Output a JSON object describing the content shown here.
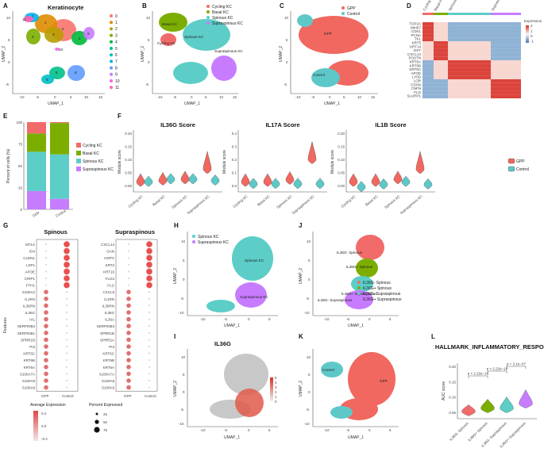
{
  "panels": [
    "A",
    "B",
    "C",
    "D",
    "E",
    "F",
    "G",
    "H",
    "I",
    "J",
    "K",
    "L"
  ],
  "colors": {
    "cycling": "#f16b6b",
    "basal": "#7cae00",
    "spinous": "#5ccdc7",
    "supraspinous": "#c77cff",
    "gpp": "#f06860",
    "control": "#5ec8c8",
    "gray": "#c8c8c8"
  },
  "a": {
    "title": "Keratinocyte",
    "xlabel": "UMAP_1",
    "ylabel": "UMAP_2",
    "xticks": [
      "-10",
      "-5",
      "0",
      "5",
      "10",
      "15"
    ],
    "yticks": [
      "10",
      "5",
      "0",
      "-5"
    ],
    "cluster_labels": [
      "0",
      "1",
      "2",
      "3",
      "4",
      "5",
      "6",
      "7",
      "8",
      "9",
      "10",
      "11"
    ],
    "cluster_colors": [
      "#f8766d",
      "#de8c00",
      "#b79f00",
      "#7cae00",
      "#00ba38",
      "#00c08b",
      "#00bfc4",
      "#00b4f0",
      "#619cff",
      "#c77cff",
      "#f564e3",
      "#ff64b0"
    ],
    "legend": [
      "0",
      "1",
      "2",
      "3",
      "4",
      "5",
      "6",
      "7",
      "8",
      "9",
      "10",
      "11"
    ]
  },
  "b": {
    "xlabel": "UMAP_1",
    "ylabel": "UMAP_2",
    "xticks": [
      "-10",
      "-5",
      "0",
      "5",
      "10",
      "15"
    ],
    "yticks": [
      "10",
      "5",
      "0",
      "-5"
    ],
    "legend": [
      "Cycling KC",
      "Basal KC",
      "Spinous KC",
      "Supraspinous KC"
    ],
    "labels": [
      "Basal KC",
      "Cycling KC",
      "Spinous KC",
      "Supraspinous KC"
    ]
  },
  "c": {
    "xlabel": "UMAP_1",
    "ylabel": "UMAP_2",
    "xticks": [
      "-10",
      "-5",
      "0",
      "5",
      "10",
      "15"
    ],
    "yticks": [
      "10",
      "5",
      "0",
      "-5"
    ],
    "legend": [
      "GPP",
      "Control"
    ],
    "labels": [
      "GPP",
      "Control"
    ]
  },
  "d": {
    "col_groups": [
      "Cycling KC",
      "Basal KC",
      "Spinous KC",
      "Suprasinous KC"
    ],
    "genes": [
      "TOP2A",
      "MKI67",
      "CDK1",
      "PCNA",
      "TK1",
      "KRT5",
      "KRT14",
      "DST",
      "CXCL14",
      "POSTN",
      "KRT6A",
      "KRT6B",
      "KRT6C",
      "APOE",
      "LY6D",
      "LOR",
      "CDSN",
      "CNFN",
      "FLG",
      "SLURP1"
    ],
    "legend_title": "Expression",
    "legend_ticks": [
      "2",
      "1",
      "0",
      "-1"
    ]
  },
  "e": {
    "ylabel": "Percent of cells (%)",
    "yticks": [
      "100",
      "75",
      "50",
      "25",
      "0"
    ],
    "categories": [
      "GPP",
      "Control"
    ],
    "legend": [
      "Cycling KC",
      "Basal KC",
      "Spinous KC",
      "Supraspinous KC"
    ]
  },
  "f": {
    "titles": [
      "IL36G Score",
      "IL17A Score",
      "IL1B Score"
    ],
    "ylabel": "Module score",
    "yticks": [
      [
        "0.20",
        "0.15",
        "0.10",
        "0.05",
        "0.00"
      ],
      [
        "0.4",
        "0.3",
        "0.2",
        "0.1",
        "0.0"
      ],
      [
        "0.20",
        "0.15",
        "0.10",
        "0.05",
        "0.00"
      ]
    ],
    "categories": [
      "Cycling KC",
      "Basal KC",
      "Spinous KC",
      "Supraspinous KC"
    ],
    "legend": [
      "GPP",
      "Control"
    ]
  },
  "g": {
    "titles": [
      "Spinous",
      "Supraspinous"
    ],
    "ylabel": "Features",
    "spinous_genes": [
      "MT1X",
      "ID4",
      "CLDN1",
      "LSP1",
      "APOE",
      "CRIP1",
      "FTH1",
      "S100A2",
      "IL1RN",
      "IL36RN",
      "IL36G",
      "IVL",
      "SERPINB3",
      "SERPINB1",
      "SPRR1B",
      "PI3",
      "KRT6C",
      "KRT6B",
      "KRT6A",
      "S100A7A",
      "S100A8",
      "S100A9"
    ],
    "supra_genes": [
      "CXCL14",
      "GAN",
      "HOPX",
      "KRT2",
      "KRT10",
      "FLG2",
      "FLG",
      "CXCL8",
      "IL1RN",
      "IL36RN",
      "IL36G",
      "IL36A",
      "SERPINB3",
      "SPRR1B",
      "SPRR2A",
      "PI3",
      "KRT6C",
      "KRT6B",
      "KRT6A",
      "S100A7A",
      "S100A8",
      "S100A9"
    ],
    "xcats": [
      "GPP",
      "Control"
    ],
    "avg_title": "Average Expression",
    "avg_ticks": [
      "0.4",
      "0.0",
      "-0.4"
    ],
    "pct_title": "Percent Expressed",
    "pct_ticks": [
      "25",
      "50",
      "75"
    ]
  },
  "h": {
    "xlabel": "UMAP_1",
    "ylabel": "UMAP_2",
    "xticks": [
      "-10",
      "-5",
      "0",
      "5"
    ],
    "yticks": [
      "10",
      "5",
      "0",
      "-5",
      "-10"
    ],
    "legend": [
      "Spinous KC",
      "Supraspinous KC"
    ],
    "labels": [
      "Spinous KC",
      "Supraspinous KC"
    ]
  },
  "i": {
    "title": "IL36G",
    "xlabel": "UMAP_1",
    "ylabel": "UMAP_2",
    "xticks": [
      "-10",
      "-5",
      "0",
      "5"
    ],
    "yticks": [
      "10",
      "5",
      "0",
      "-5",
      "-10"
    ],
    "scale": [
      "5",
      "4",
      "3",
      "2",
      "1",
      "0"
    ]
  },
  "j": {
    "xlabel": "UMAP_1",
    "ylabel": "UMAP_2",
    "xticks": [
      "-10",
      "-5",
      "0",
      "5"
    ],
    "yticks": [
      "10",
      "5",
      "0",
      "-5",
      "-10"
    ],
    "legend": [
      "IL36G- Spinous",
      "IL36G+ Spinous",
      "IL36G- Supraspinous",
      "IL36G+ Supraspinous"
    ],
    "labels": [
      "IL36G- Spinous",
      "IL36G+ Spinous",
      "IL36G+ Supraspinous",
      "IL36G- Supraspinous"
    ]
  },
  "k": {
    "xlabel": "UMAP_1",
    "ylabel": "UMAP_2",
    "xticks": [
      "-10",
      "-5",
      "0",
      "5"
    ],
    "yticks": [
      "10",
      "5",
      "0",
      "-5",
      "-10"
    ],
    "labels": [
      "Control",
      "GPP"
    ]
  },
  "l": {
    "title": "HALLMARK_INFLAMMATORY_RESPONSE",
    "ylabel": "AUC score",
    "yticks": [
      "0.20",
      "0.15",
      "0.10",
      "0.05"
    ],
    "categories": [
      "IL36G- Spinous",
      "IL36G+ Spinous",
      "IL36G- Supraspinous",
      "IL36G+ Supraspinous"
    ],
    "pvalues": [
      "p < 2.22e−16",
      "p < 2.22e−16",
      "p = 3.1e−07"
    ]
  },
  "chart_data": [
    {
      "type": "bar",
      "title": "Percent of cells (%)",
      "categories": [
        "GPP",
        "Control"
      ],
      "series": [
        {
          "name": "Supraspinous KC",
          "values": [
            21,
            12
          ]
        },
        {
          "name": "Spinous KC",
          "values": [
            45,
            51
          ]
        },
        {
          "name": "Basal KC",
          "values": [
            21,
            36
          ]
        },
        {
          "name": "Cycling KC",
          "values": [
            13,
            1
          ]
        }
      ],
      "ylim": [
        0,
        100
      ]
    },
    {
      "type": "violin",
      "title": "IL36G Score",
      "categories": [
        "Cycling KC",
        "Basal KC",
        "Spinous KC",
        "Supraspinous KC"
      ],
      "series": [
        {
          "name": "GPP",
          "medians": [
            0.02,
            0.025,
            0.03,
            0.07
          ]
        },
        {
          "name": "Control",
          "medians": [
            0.02,
            0.03,
            0.03,
            0.025
          ]
        }
      ],
      "ylim": [
        -0.02,
        0.22
      ]
    },
    {
      "type": "violin",
      "title": "IL17A Score",
      "categories": [
        "Cycling KC",
        "Basal KC",
        "Spinous KC",
        "Supraspinous KC"
      ],
      "series": [
        {
          "name": "GPP",
          "medians": [
            0.0,
            0.0,
            0.02,
            0.22
          ]
        },
        {
          "name": "Control",
          "medians": [
            -0.02,
            -0.02,
            -0.02,
            -0.02
          ]
        }
      ],
      "ylim": [
        -0.1,
        0.5
      ]
    },
    {
      "type": "violin",
      "title": "IL1B Score",
      "categories": [
        "Cycling KC",
        "Basal KC",
        "Spinous KC",
        "Supraspinous KC"
      ],
      "series": [
        {
          "name": "GPP",
          "medians": [
            0.02,
            0.02,
            0.03,
            0.07
          ]
        },
        {
          "name": "Control",
          "medians": [
            0.0,
            0.01,
            0.02,
            0.01
          ]
        }
      ],
      "ylim": [
        -0.02,
        0.22
      ]
    },
    {
      "type": "violin",
      "title": "HALLMARK_INFLAMMATORY_RESPONSE",
      "categories": [
        "IL36G- Spinous",
        "IL36G+ Spinous",
        "IL36G- Supraspinous",
        "IL36G+ Supraspinous"
      ],
      "values": [
        0.045,
        0.055,
        0.055,
        0.07
      ],
      "ylim": [
        0.02,
        0.2
      ]
    }
  ]
}
